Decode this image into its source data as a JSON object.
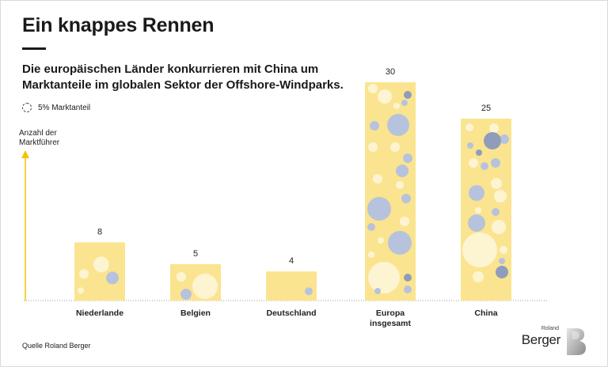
{
  "title": "Ein knappes Rennen",
  "subtitle": "Die europäischen Länder konkurrieren mit China um Marktanteile im globalen Sektor der Offshore-Windparks.",
  "legend_label": "5% Marktanteil",
  "source": "Quelle Roland Berger",
  "logo": {
    "small": "Roland",
    "big": "Berger"
  },
  "colors": {
    "bar": "#fbe48f",
    "circle_light": "#fdf4d2",
    "circle_blue": "#b7c3dc",
    "circle_grey": "#8f9dbb",
    "axis": "#f2c400"
  },
  "chart_data": {
    "type": "bar",
    "title": "Ein knappes Rennen",
    "ylabel": "Anzahl der Marktführer",
    "xlabel": "",
    "categories": [
      "Niederlande",
      "Belgien",
      "Deutschland",
      "Europa insgesamt",
      "China"
    ],
    "values": [
      8,
      5,
      4,
      30,
      25
    ],
    "ylim": [
      0,
      30
    ],
    "grid": false,
    "legend": "top-left"
  }
}
